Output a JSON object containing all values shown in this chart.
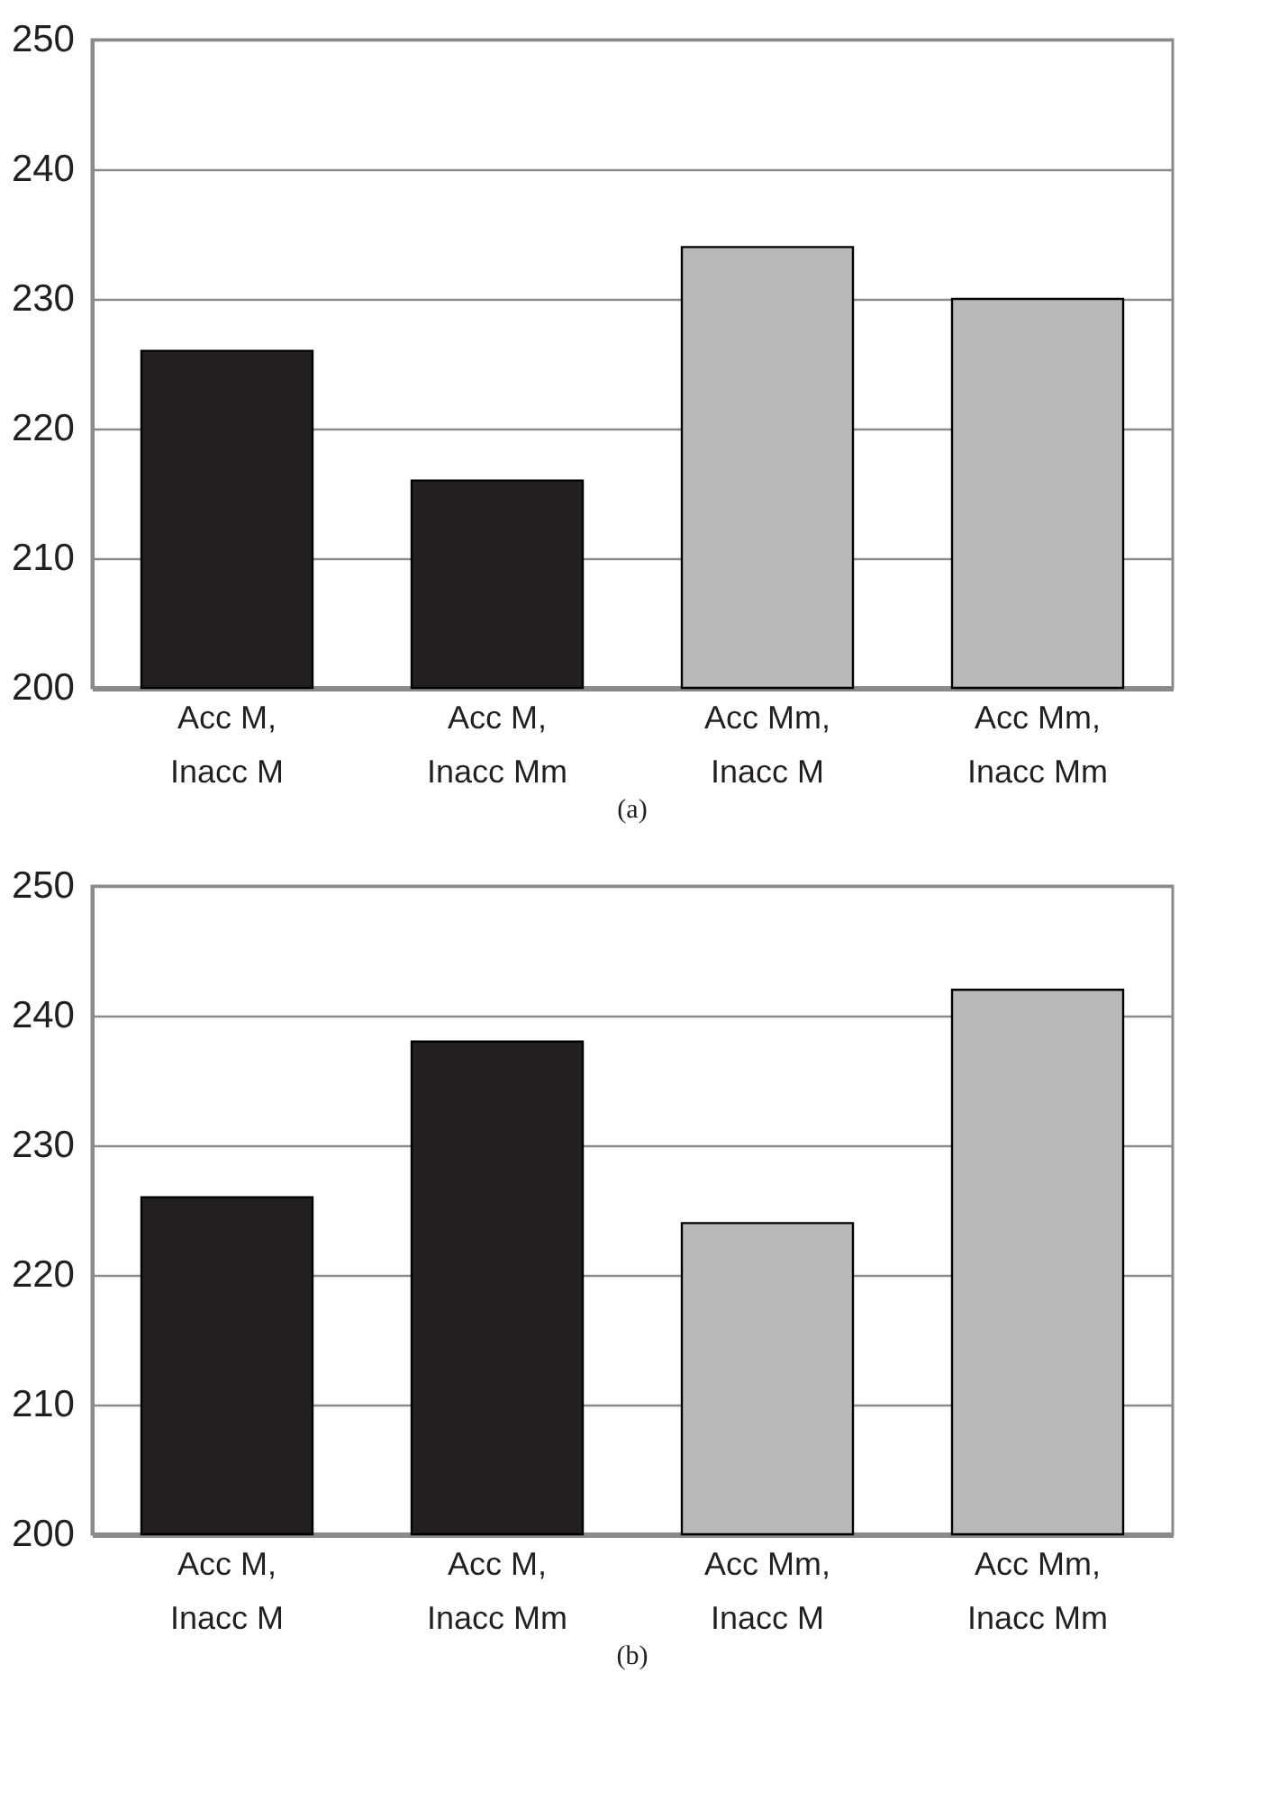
{
  "chart_data": [
    {
      "type": "bar",
      "title": "(a)",
      "categories": [
        "Acc M, Inacc M",
        "Acc M, Inacc Mm",
        "Acc Mm, Inacc M",
        "Acc Mm, Inacc Mm"
      ],
      "values": [
        226,
        216,
        234,
        230
      ],
      "colors": [
        "#231f20",
        "#231f20",
        "#b8b9bb",
        "#b8b9bb"
      ],
      "ylim": [
        200,
        250
      ],
      "yticks": [
        200,
        210,
        220,
        230,
        240,
        250
      ],
      "grid": "y"
    },
    {
      "type": "bar",
      "title": "(b)",
      "categories": [
        "Acc M, Inacc M",
        "Acc M, Inacc Mm",
        "Acc Mm, Inacc M",
        "Acc Mm, Inacc Mm"
      ],
      "values": [
        226,
        238,
        224,
        242
      ],
      "colors": [
        "#231f20",
        "#231f20",
        "#b8b9bb",
        "#b8b9bb"
      ],
      "ylim": [
        200,
        250
      ],
      "yticks": [
        200,
        210,
        220,
        230,
        240,
        250
      ],
      "grid": "y"
    }
  ]
}
